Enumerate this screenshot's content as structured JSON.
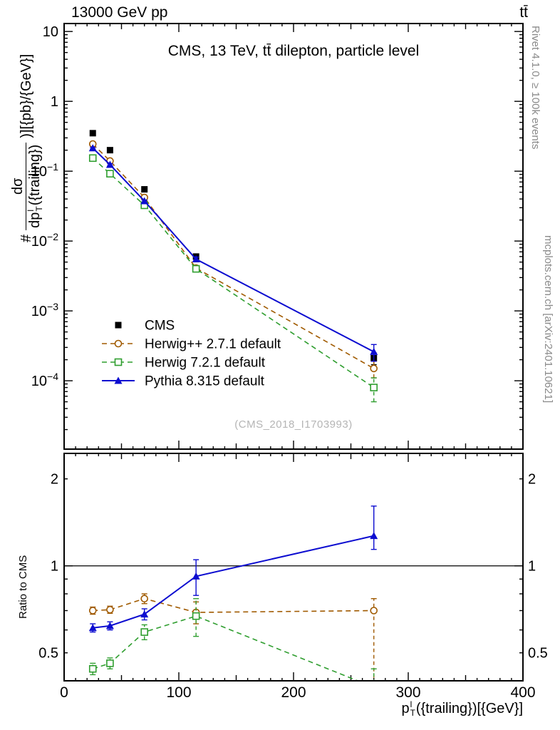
{
  "header": {
    "beam_energy": "13000 GeV pp",
    "process": "tt̄"
  },
  "main_panel": {
    "title": "CMS, 13 TeV, tt̄ dilepton, particle level",
    "watermark": "(CMS_2018_I1703993)",
    "ylabel": {
      "prefix": "#",
      "numerator": "dσ",
      "den_base": "dp",
      "den_sup": "l",
      "den_sub": "T",
      "den_rest": "({trailing})",
      "suffix": ")][{pb}/{GeV}]"
    }
  },
  "ratio_panel": {
    "ylabel": "Ratio to CMS"
  },
  "xaxis": {
    "label_base": "p",
    "label_sup": "l",
    "label_sub": "T",
    "label_rest": "({trailing})[{GeV}]"
  },
  "side_notes": {
    "rivet": "Rivet 4.1.0, ≥ 100k events",
    "mcplots": "mcplots.cern.ch [arXiv:2401.10621]"
  },
  "colors": {
    "cms": "#000000",
    "herwigpp": "#a05a00",
    "herwig7": "#2f9e2f",
    "pythia": "#0c0cd0"
  },
  "chart_data": [
    {
      "id": "main",
      "type": "line",
      "title": "CMS, 13 TeV, tt̄ dilepton, particle level",
      "xlabel": "pT(l trailing) [GeV]",
      "ylabel": "# dσ/dpT(l trailing) [pb/GeV]",
      "yscale": "log",
      "xlim": [
        0,
        400
      ],
      "ylim": [
        1.05e-05,
        13
      ],
      "x": [
        25,
        40,
        70,
        115,
        270
      ],
      "series": [
        {
          "name": "CMS",
          "color": "#000000",
          "marker": "square-filled",
          "line": "none",
          "values": [
            0.35,
            0.2,
            0.055,
            0.006,
            0.00021
          ],
          "errors": [
            0.012,
            0.007,
            0.002,
            0.0004,
            4e-05
          ]
        },
        {
          "name": "Herwig++ 2.7.1 default",
          "color": "#a05a00",
          "marker": "circle-open",
          "line": "dashed",
          "values": [
            0.245,
            0.14,
            0.042,
            0.0041,
            0.00015
          ],
          "errors": [
            0.006,
            0.004,
            0.0013,
            0.0003,
            4e-05
          ]
        },
        {
          "name": "Herwig 7.2.1 default",
          "color": "#2f9e2f",
          "marker": "square-open",
          "line": "dashed",
          "values": [
            0.154,
            0.092,
            0.0325,
            0.004,
            8e-05
          ],
          "errors": [
            0.005,
            0.003,
            0.001,
            0.0003,
            3e-05
          ]
        },
        {
          "name": "Pythia 8.315 default",
          "color": "#0c0cd0",
          "marker": "triangle-filled",
          "line": "solid",
          "values": [
            0.214,
            0.124,
            0.0374,
            0.0055,
            0.00026
          ],
          "errors": [
            0.006,
            0.004,
            0.0012,
            0.0004,
            7e-05
          ]
        }
      ],
      "legend_position": "lower-left",
      "grid": false
    },
    {
      "id": "ratio",
      "type": "line",
      "ylabel": "Ratio to CMS",
      "yscale": "log",
      "xlim": [
        0,
        400
      ],
      "ylim": [
        0.4,
        2.45
      ],
      "ytick_labels": [
        0.5,
        1,
        2
      ],
      "ref_line": 1,
      "x": [
        25,
        40,
        70,
        115,
        270
      ],
      "series": [
        {
          "name": "Herwig++ 2.7.1 default",
          "color": "#a05a00",
          "marker": "circle-open",
          "line": "dashed",
          "values": [
            0.7,
            0.705,
            0.77,
            0.69,
            0.7
          ],
          "errors": [
            0.02,
            0.02,
            0.03,
            0.06,
            [
              0.33,
              0.07
            ]
          ]
        },
        {
          "name": "Herwig 7.2.1 default",
          "color": "#2f9e2f",
          "marker": "square-open",
          "line": "dashed",
          "values": [
            0.44,
            0.46,
            0.59,
            0.67,
            0.38
          ],
          "errors": [
            0.02,
            0.02,
            0.035,
            0.1,
            0.06
          ]
        },
        {
          "name": "Pythia 8.315 default",
          "color": "#0c0cd0",
          "marker": "triangle-filled",
          "line": "solid",
          "values": [
            0.61,
            0.62,
            0.68,
            0.92,
            1.27
          ],
          "errors": [
            0.02,
            0.02,
            0.03,
            0.13,
            [
              0.13,
              0.34
            ]
          ]
        }
      ],
      "grid": false
    }
  ]
}
